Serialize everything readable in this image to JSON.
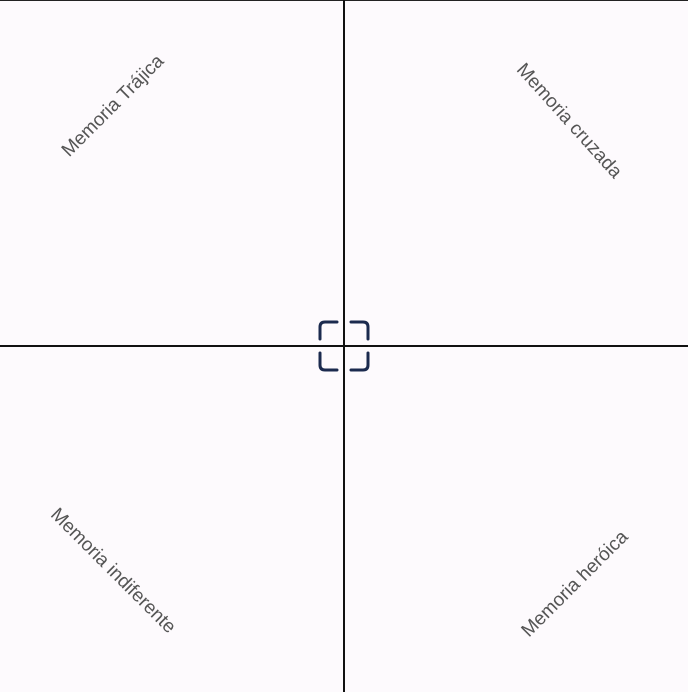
{
  "diagram": {
    "quadrants": {
      "top_left": "Memoria Trájica",
      "top_right": "Memoria cruzada",
      "bottom_left": "Memoria indiferente",
      "bottom_right": "Memoria heróica"
    },
    "colors": {
      "background": "#fdfafd",
      "axis": "#111111",
      "label": "#555555",
      "handle": "#1b2a4e"
    },
    "handle_icon": "focus-frame-icon"
  }
}
